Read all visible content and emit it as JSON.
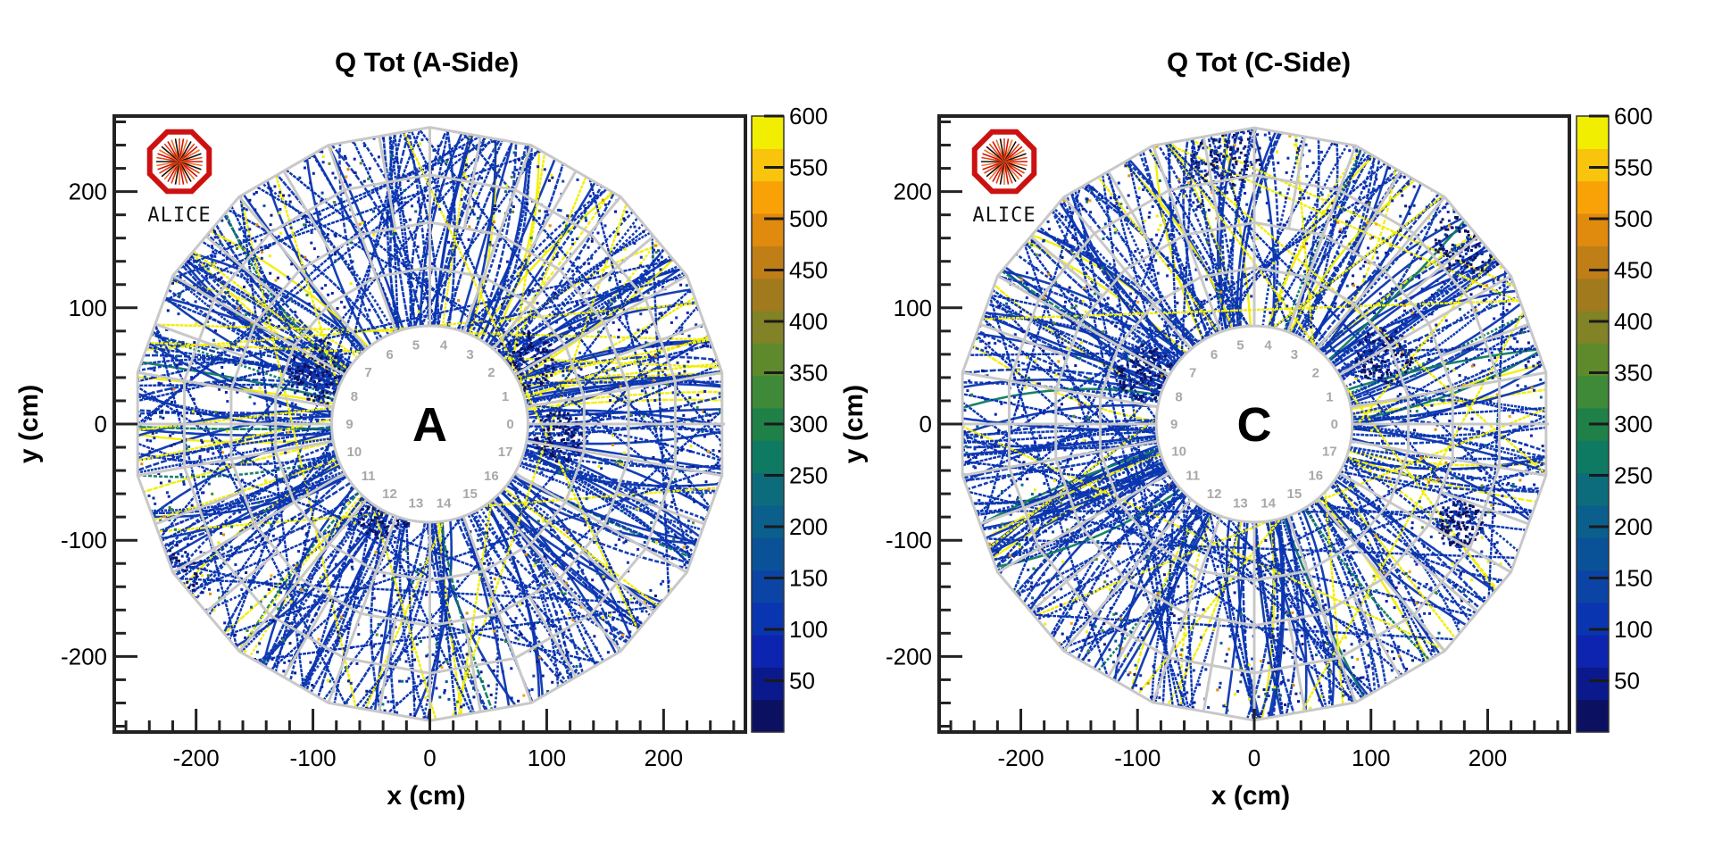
{
  "chart_data": [
    {
      "type": "heatmap",
      "title": "Q Tot (A-Side)",
      "xlabel": "x (cm)",
      "ylabel": "y (cm)",
      "xlim": [
        -270,
        270
      ],
      "ylim": [
        -265,
        265
      ],
      "x_ticks": [
        -200,
        -100,
        0,
        100,
        200
      ],
      "y_ticks": [
        200,
        100,
        0,
        -100,
        -200
      ],
      "x_tick_labels": [
        "-200",
        "-100",
        "0",
        "100",
        "200"
      ],
      "y_tick_labels": [
        "200",
        "100",
        "0",
        "-100",
        "-200"
      ],
      "side_label": "A",
      "sector_labels": [
        "0",
        "1",
        "2",
        "3",
        "4",
        "5",
        "6",
        "7",
        "8",
        "9",
        "10",
        "11",
        "12",
        "13",
        "14",
        "15",
        "16",
        "17"
      ],
      "colorbar": {
        "range": [
          0,
          600
        ],
        "ticks": [
          50,
          100,
          150,
          200,
          250,
          300,
          350,
          400,
          450,
          500,
          550,
          600
        ],
        "tick_labels": [
          "50",
          "100",
          "150",
          "200",
          "250",
          "300",
          "350",
          "400",
          "450",
          "500",
          "550",
          "600"
        ]
      },
      "grid": false,
      "logo": "ALICE",
      "seed": 7
    },
    {
      "type": "heatmap",
      "title": "Q Tot (C-Side)",
      "xlabel": "x (cm)",
      "ylabel": "y (cm)",
      "xlim": [
        -270,
        270
      ],
      "ylim": [
        -265,
        265
      ],
      "x_ticks": [
        -200,
        -100,
        0,
        100,
        200
      ],
      "y_ticks": [
        200,
        100,
        0,
        -100,
        -200
      ],
      "x_tick_labels": [
        "-200",
        "-100",
        "0",
        "100",
        "200"
      ],
      "y_tick_labels": [
        "200",
        "100",
        "0",
        "-100",
        "-200"
      ],
      "side_label": "C",
      "sector_labels": [
        "0",
        "1",
        "2",
        "3",
        "4",
        "5",
        "6",
        "7",
        "8",
        "9",
        "10",
        "11",
        "12",
        "13",
        "14",
        "15",
        "16",
        "17"
      ],
      "colorbar": {
        "range": [
          0,
          600
        ],
        "ticks": [
          50,
          100,
          150,
          200,
          250,
          300,
          350,
          400,
          450,
          500,
          550,
          600
        ],
        "tick_labels": [
          "50",
          "100",
          "150",
          "200",
          "250",
          "300",
          "350",
          "400",
          "450",
          "500",
          "550",
          "600"
        ]
      },
      "grid": false,
      "logo": "ALICE",
      "seed": 13
    }
  ],
  "colormap": [
    "#0b1060",
    "#0a1a8c",
    "#0c24b0",
    "#0a35b0",
    "#0b44a4",
    "#0a5298",
    "#0a5f8c",
    "#0c6c7c",
    "#0f7a62",
    "#1f8048",
    "#3e8a38",
    "#5f8a2c",
    "#828226",
    "#a27a1e",
    "#c07e16",
    "#e08a0e",
    "#f8a208",
    "#f8c40c",
    "#f2ee02"
  ],
  "detector": {
    "inner_radius_cm": 84,
    "outer_radius_cm": 250,
    "sectors": 18,
    "row_radii_cm": [
      84,
      132,
      170,
      210,
      250
    ],
    "frame_color": "#c8c8c8"
  }
}
